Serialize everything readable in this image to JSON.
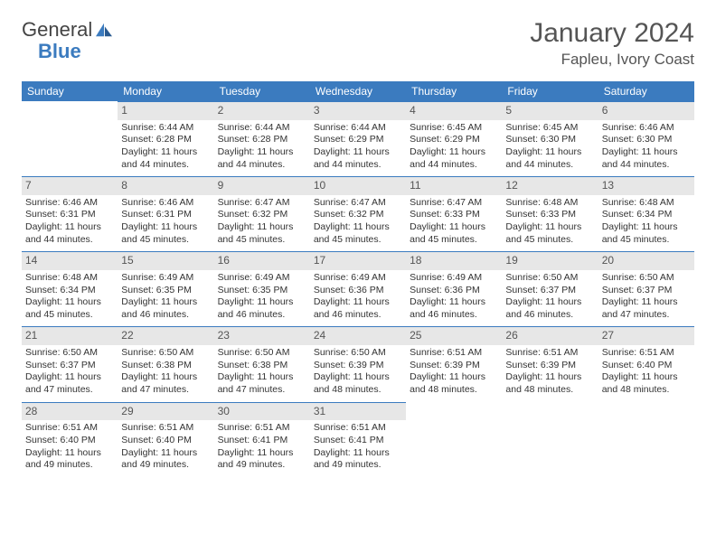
{
  "logo": {
    "word1": "General",
    "word2": "Blue"
  },
  "title": "January 2024",
  "location": "Fapleu, Ivory Coast",
  "colors": {
    "header_bg": "#3b7bbf",
    "header_text": "#ffffff",
    "daynum_bg": "#e7e7e7",
    "daynum_text": "#555555",
    "cell_border_top": "#3b7bbf",
    "body_text": "#333333",
    "background": "#ffffff"
  },
  "weekdays": [
    "Sunday",
    "Monday",
    "Tuesday",
    "Wednesday",
    "Thursday",
    "Friday",
    "Saturday"
  ],
  "weeks": [
    [
      null,
      {
        "d": "1",
        "sunrise": "Sunrise: 6:44 AM",
        "sunset": "Sunset: 6:28 PM",
        "daylight": "Daylight: 11 hours and 44 minutes."
      },
      {
        "d": "2",
        "sunrise": "Sunrise: 6:44 AM",
        "sunset": "Sunset: 6:28 PM",
        "daylight": "Daylight: 11 hours and 44 minutes."
      },
      {
        "d": "3",
        "sunrise": "Sunrise: 6:44 AM",
        "sunset": "Sunset: 6:29 PM",
        "daylight": "Daylight: 11 hours and 44 minutes."
      },
      {
        "d": "4",
        "sunrise": "Sunrise: 6:45 AM",
        "sunset": "Sunset: 6:29 PM",
        "daylight": "Daylight: 11 hours and 44 minutes."
      },
      {
        "d": "5",
        "sunrise": "Sunrise: 6:45 AM",
        "sunset": "Sunset: 6:30 PM",
        "daylight": "Daylight: 11 hours and 44 minutes."
      },
      {
        "d": "6",
        "sunrise": "Sunrise: 6:46 AM",
        "sunset": "Sunset: 6:30 PM",
        "daylight": "Daylight: 11 hours and 44 minutes."
      }
    ],
    [
      {
        "d": "7",
        "sunrise": "Sunrise: 6:46 AM",
        "sunset": "Sunset: 6:31 PM",
        "daylight": "Daylight: 11 hours and 44 minutes."
      },
      {
        "d": "8",
        "sunrise": "Sunrise: 6:46 AM",
        "sunset": "Sunset: 6:31 PM",
        "daylight": "Daylight: 11 hours and 45 minutes."
      },
      {
        "d": "9",
        "sunrise": "Sunrise: 6:47 AM",
        "sunset": "Sunset: 6:32 PM",
        "daylight": "Daylight: 11 hours and 45 minutes."
      },
      {
        "d": "10",
        "sunrise": "Sunrise: 6:47 AM",
        "sunset": "Sunset: 6:32 PM",
        "daylight": "Daylight: 11 hours and 45 minutes."
      },
      {
        "d": "11",
        "sunrise": "Sunrise: 6:47 AM",
        "sunset": "Sunset: 6:33 PM",
        "daylight": "Daylight: 11 hours and 45 minutes."
      },
      {
        "d": "12",
        "sunrise": "Sunrise: 6:48 AM",
        "sunset": "Sunset: 6:33 PM",
        "daylight": "Daylight: 11 hours and 45 minutes."
      },
      {
        "d": "13",
        "sunrise": "Sunrise: 6:48 AM",
        "sunset": "Sunset: 6:34 PM",
        "daylight": "Daylight: 11 hours and 45 minutes."
      }
    ],
    [
      {
        "d": "14",
        "sunrise": "Sunrise: 6:48 AM",
        "sunset": "Sunset: 6:34 PM",
        "daylight": "Daylight: 11 hours and 45 minutes."
      },
      {
        "d": "15",
        "sunrise": "Sunrise: 6:49 AM",
        "sunset": "Sunset: 6:35 PM",
        "daylight": "Daylight: 11 hours and 46 minutes."
      },
      {
        "d": "16",
        "sunrise": "Sunrise: 6:49 AM",
        "sunset": "Sunset: 6:35 PM",
        "daylight": "Daylight: 11 hours and 46 minutes."
      },
      {
        "d": "17",
        "sunrise": "Sunrise: 6:49 AM",
        "sunset": "Sunset: 6:36 PM",
        "daylight": "Daylight: 11 hours and 46 minutes."
      },
      {
        "d": "18",
        "sunrise": "Sunrise: 6:49 AM",
        "sunset": "Sunset: 6:36 PM",
        "daylight": "Daylight: 11 hours and 46 minutes."
      },
      {
        "d": "19",
        "sunrise": "Sunrise: 6:50 AM",
        "sunset": "Sunset: 6:37 PM",
        "daylight": "Daylight: 11 hours and 46 minutes."
      },
      {
        "d": "20",
        "sunrise": "Sunrise: 6:50 AM",
        "sunset": "Sunset: 6:37 PM",
        "daylight": "Daylight: 11 hours and 47 minutes."
      }
    ],
    [
      {
        "d": "21",
        "sunrise": "Sunrise: 6:50 AM",
        "sunset": "Sunset: 6:37 PM",
        "daylight": "Daylight: 11 hours and 47 minutes."
      },
      {
        "d": "22",
        "sunrise": "Sunrise: 6:50 AM",
        "sunset": "Sunset: 6:38 PM",
        "daylight": "Daylight: 11 hours and 47 minutes."
      },
      {
        "d": "23",
        "sunrise": "Sunrise: 6:50 AM",
        "sunset": "Sunset: 6:38 PM",
        "daylight": "Daylight: 11 hours and 47 minutes."
      },
      {
        "d": "24",
        "sunrise": "Sunrise: 6:50 AM",
        "sunset": "Sunset: 6:39 PM",
        "daylight": "Daylight: 11 hours and 48 minutes."
      },
      {
        "d": "25",
        "sunrise": "Sunrise: 6:51 AM",
        "sunset": "Sunset: 6:39 PM",
        "daylight": "Daylight: 11 hours and 48 minutes."
      },
      {
        "d": "26",
        "sunrise": "Sunrise: 6:51 AM",
        "sunset": "Sunset: 6:39 PM",
        "daylight": "Daylight: 11 hours and 48 minutes."
      },
      {
        "d": "27",
        "sunrise": "Sunrise: 6:51 AM",
        "sunset": "Sunset: 6:40 PM",
        "daylight": "Daylight: 11 hours and 48 minutes."
      }
    ],
    [
      {
        "d": "28",
        "sunrise": "Sunrise: 6:51 AM",
        "sunset": "Sunset: 6:40 PM",
        "daylight": "Daylight: 11 hours and 49 minutes."
      },
      {
        "d": "29",
        "sunrise": "Sunrise: 6:51 AM",
        "sunset": "Sunset: 6:40 PM",
        "daylight": "Daylight: 11 hours and 49 minutes."
      },
      {
        "d": "30",
        "sunrise": "Sunrise: 6:51 AM",
        "sunset": "Sunset: 6:41 PM",
        "daylight": "Daylight: 11 hours and 49 minutes."
      },
      {
        "d": "31",
        "sunrise": "Sunrise: 6:51 AM",
        "sunset": "Sunset: 6:41 PM",
        "daylight": "Daylight: 11 hours and 49 minutes."
      },
      null,
      null,
      null
    ]
  ]
}
